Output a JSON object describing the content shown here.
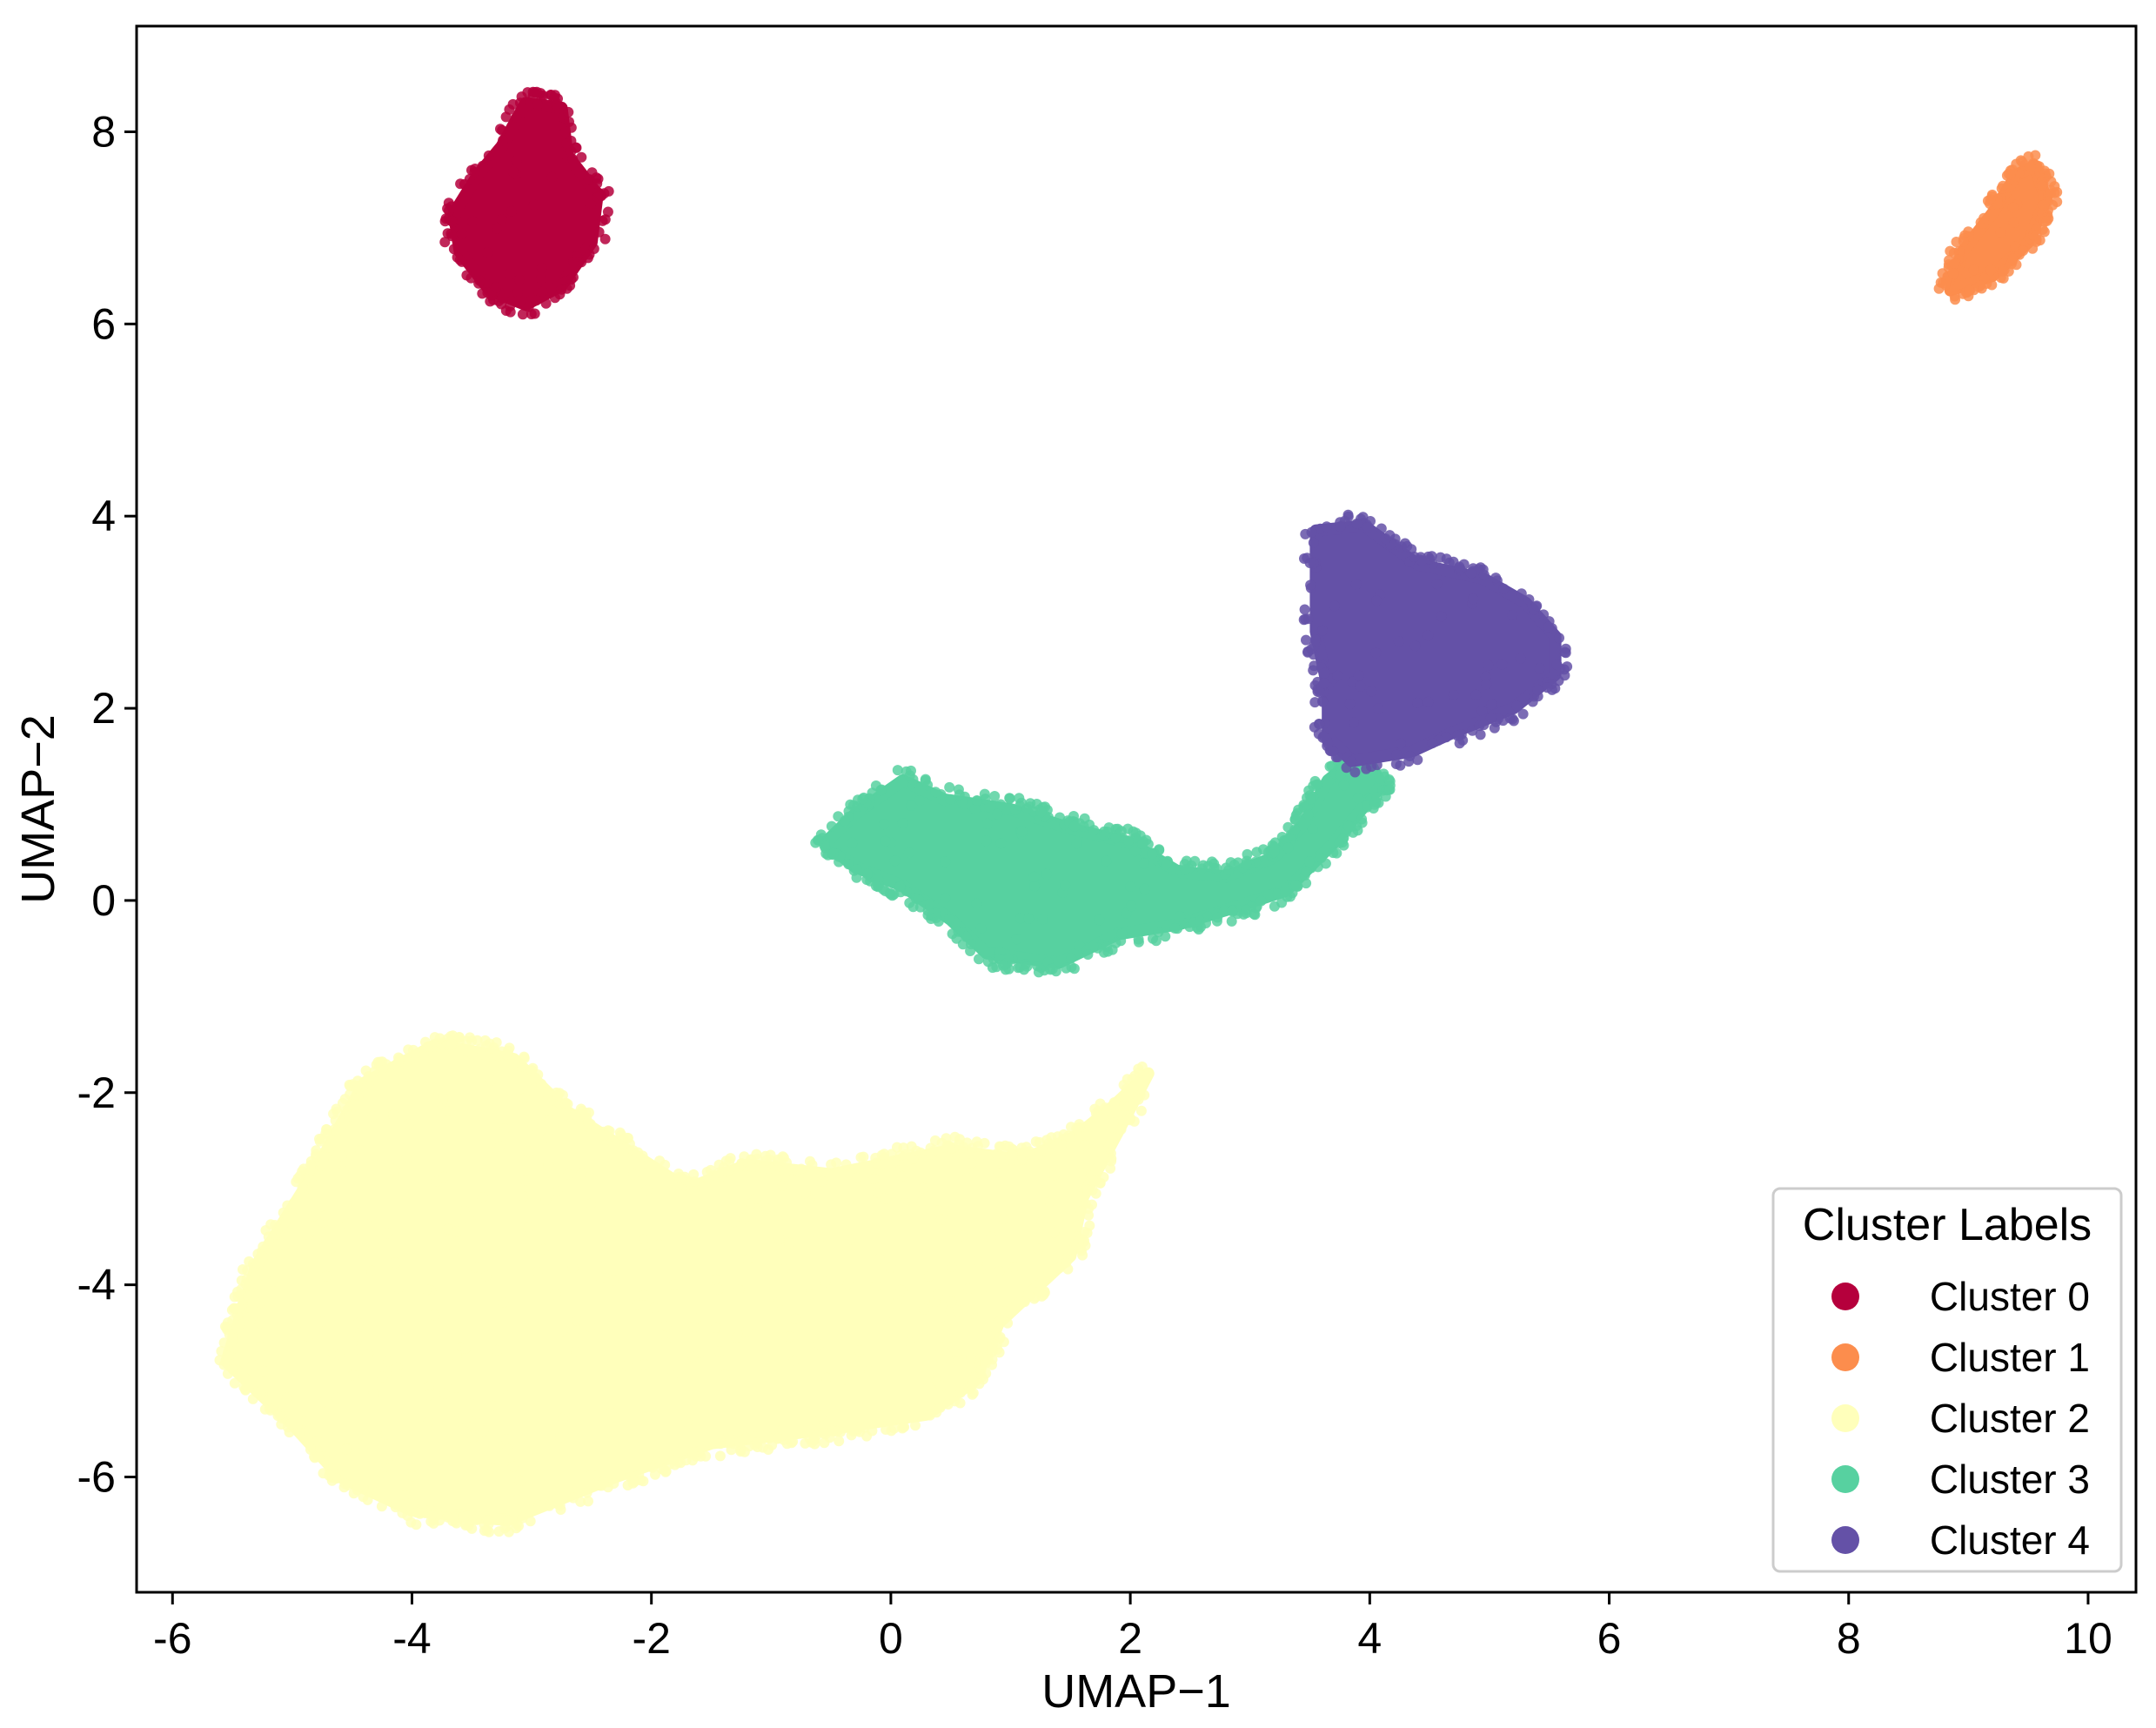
{
  "chart_data": {
    "type": "scatter",
    "title": "",
    "xlabel": "UMAP−1",
    "ylabel": "UMAP−2",
    "xlim": [
      -6.3,
      10.4
    ],
    "ylim": [
      -7.2,
      9.1
    ],
    "xticks": [
      -6,
      -4,
      -2,
      0,
      2,
      4,
      6,
      8,
      10
    ],
    "xtick_labels": [
      "-6",
      "-4",
      "-2",
      "0",
      "2",
      "4",
      "6",
      "8",
      "10"
    ],
    "yticks": [
      8,
      6,
      4,
      2,
      0,
      -2,
      -4,
      -6
    ],
    "ytick_labels": [
      "8",
      "6",
      "4",
      "2",
      "0",
      "-2",
      "-4",
      "-6"
    ],
    "grid": false,
    "legend": {
      "title": "Cluster Labels",
      "placement": "lower-right"
    },
    "series": [
      {
        "name": "Cluster 0",
        "color": "#b5003c",
        "shape": [
          [
            -3.05,
            8.3
          ],
          [
            -2.75,
            8.25
          ],
          [
            -2.7,
            7.75
          ],
          [
            -2.45,
            7.35
          ],
          [
            -2.5,
            6.85
          ],
          [
            -2.75,
            6.4
          ],
          [
            -3.05,
            6.2
          ],
          [
            -3.35,
            6.35
          ],
          [
            -3.6,
            6.75
          ],
          [
            -3.65,
            7.15
          ],
          [
            -3.45,
            7.55
          ],
          [
            -3.25,
            7.85
          ]
        ]
      },
      {
        "name": "Cluster 1",
        "color": "#fc8d4d",
        "shape": [
          [
            9.55,
            7.65
          ],
          [
            9.65,
            7.3
          ],
          [
            9.5,
            6.85
          ],
          [
            9.2,
            6.5
          ],
          [
            8.85,
            6.35
          ],
          [
            8.95,
            6.75
          ],
          [
            9.2,
            7.15
          ],
          [
            9.4,
            7.55
          ]
        ]
      },
      {
        "name": "Cluster 2",
        "color": "#ffffbb",
        "shape": [
          [
            -5.55,
            -4.8
          ],
          [
            -5.3,
            -3.8
          ],
          [
            -4.8,
            -2.8
          ],
          [
            -4.4,
            -1.9
          ],
          [
            -3.8,
            -1.5
          ],
          [
            -3.15,
            -1.65
          ],
          [
            -2.7,
            -2.2
          ],
          [
            -2.2,
            -2.6
          ],
          [
            -1.7,
            -3.0
          ],
          [
            -1.2,
            -2.75
          ],
          [
            -0.5,
            -2.85
          ],
          [
            0.5,
            -2.6
          ],
          [
            1.1,
            -2.7
          ],
          [
            1.55,
            -2.45
          ],
          [
            1.85,
            -2.15
          ],
          [
            2.15,
            -1.8
          ],
          [
            1.9,
            -2.4
          ],
          [
            1.6,
            -3.1
          ],
          [
            1.5,
            -3.7
          ],
          [
            0.9,
            -4.4
          ],
          [
            0.7,
            -5.0
          ],
          [
            0.3,
            -5.35
          ],
          [
            -0.5,
            -5.5
          ],
          [
            -1.5,
            -5.65
          ],
          [
            -2.3,
            -6.0
          ],
          [
            -3.2,
            -6.45
          ],
          [
            -4.0,
            -6.35
          ],
          [
            -4.6,
            -6.0
          ],
          [
            -5.0,
            -5.45
          ]
        ]
      },
      {
        "name": "Cluster 3",
        "color": "#57d1a0",
        "shape": [
          [
            -0.55,
            0.6
          ],
          [
            -0.3,
            0.9
          ],
          [
            0.1,
            1.25
          ],
          [
            0.45,
            1.05
          ],
          [
            1.0,
            0.95
          ],
          [
            1.5,
            0.75
          ],
          [
            2.0,
            0.6
          ],
          [
            2.4,
            0.3
          ],
          [
            2.8,
            0.25
          ],
          [
            3.2,
            0.45
          ],
          [
            3.45,
            0.8
          ],
          [
            3.65,
            1.25
          ],
          [
            3.95,
            1.55
          ],
          [
            4.1,
            1.2
          ],
          [
            3.7,
            0.6
          ],
          [
            3.3,
            0.1
          ],
          [
            2.8,
            -0.1
          ],
          [
            2.4,
            -0.25
          ],
          [
            1.9,
            -0.35
          ],
          [
            1.4,
            -0.65
          ],
          [
            0.8,
            -0.55
          ],
          [
            0.5,
            -0.2
          ],
          [
            0.1,
            0.15
          ],
          [
            -0.3,
            0.35
          ]
        ]
      },
      {
        "name": "Cluster 4",
        "color": "#6451a7",
        "shape": [
          [
            3.55,
            3.85
          ],
          [
            3.95,
            3.9
          ],
          [
            4.4,
            3.5
          ],
          [
            4.95,
            3.35
          ],
          [
            5.3,
            3.1
          ],
          [
            5.55,
            2.75
          ],
          [
            5.55,
            2.35
          ],
          [
            5.2,
            2.0
          ],
          [
            4.7,
            1.75
          ],
          [
            4.35,
            1.55
          ],
          [
            3.85,
            1.45
          ],
          [
            3.65,
            1.7
          ],
          [
            3.65,
            2.2
          ],
          [
            3.55,
            2.8
          ],
          [
            3.55,
            3.4
          ]
        ]
      }
    ]
  }
}
